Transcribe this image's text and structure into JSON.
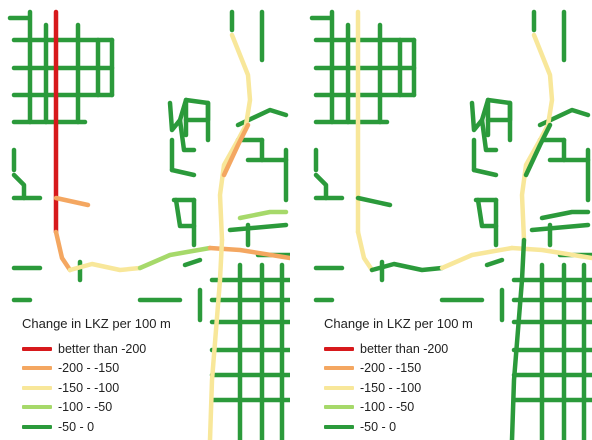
{
  "colors": {
    "very_worse": "#d7191c",
    "worse": "#f4a761",
    "moderate": "#f8e79a",
    "slight": "#a6d96a",
    "minor": "#2b9a3b"
  },
  "maps": [
    {
      "id": "left",
      "legend": {
        "title": "Change in LKZ per 100 m",
        "items": [
          {
            "label": "better than -200",
            "color_key": "very_worse"
          },
          {
            "label": "-200 - -150",
            "color_key": "worse"
          },
          {
            "label": "-150 - -100",
            "color_key": "moderate"
          },
          {
            "label": "-100 - -50",
            "color_key": "slight"
          },
          {
            "label": "-50 - 0",
            "color_key": "minor"
          }
        ]
      }
    },
    {
      "id": "right",
      "legend": {
        "title": "Change in LKZ per 100 m",
        "items": [
          {
            "label": "better than -200",
            "color_key": "very_worse"
          },
          {
            "label": "-200 - -150",
            "color_key": "worse"
          },
          {
            "label": "-150 - -100",
            "color_key": "moderate"
          },
          {
            "label": "-100 - -50",
            "color_key": "slight"
          },
          {
            "label": "-50 - 0",
            "color_key": "minor"
          }
        ]
      }
    }
  ],
  "road_classes": {
    "left": {
      "main_nw": "very_worse",
      "main_sw": "worse",
      "arterial_w": "moderate",
      "arterial_mid": "slight",
      "arterial_e": "worse",
      "east_vertical_n": "moderate",
      "east_vertical_s": "moderate",
      "diagonal_ne": "worse",
      "spur_w": "worse",
      "ring_e": "slight"
    },
    "right": {
      "main_nw": "moderate",
      "main_sw": "moderate",
      "arterial_w": "minor",
      "arterial_mid": "moderate",
      "arterial_e": "moderate",
      "east_vertical_n": "moderate",
      "east_vertical_s": "minor",
      "diagonal_ne": "minor",
      "spur_w": "minor",
      "ring_e": "minor"
    }
  }
}
